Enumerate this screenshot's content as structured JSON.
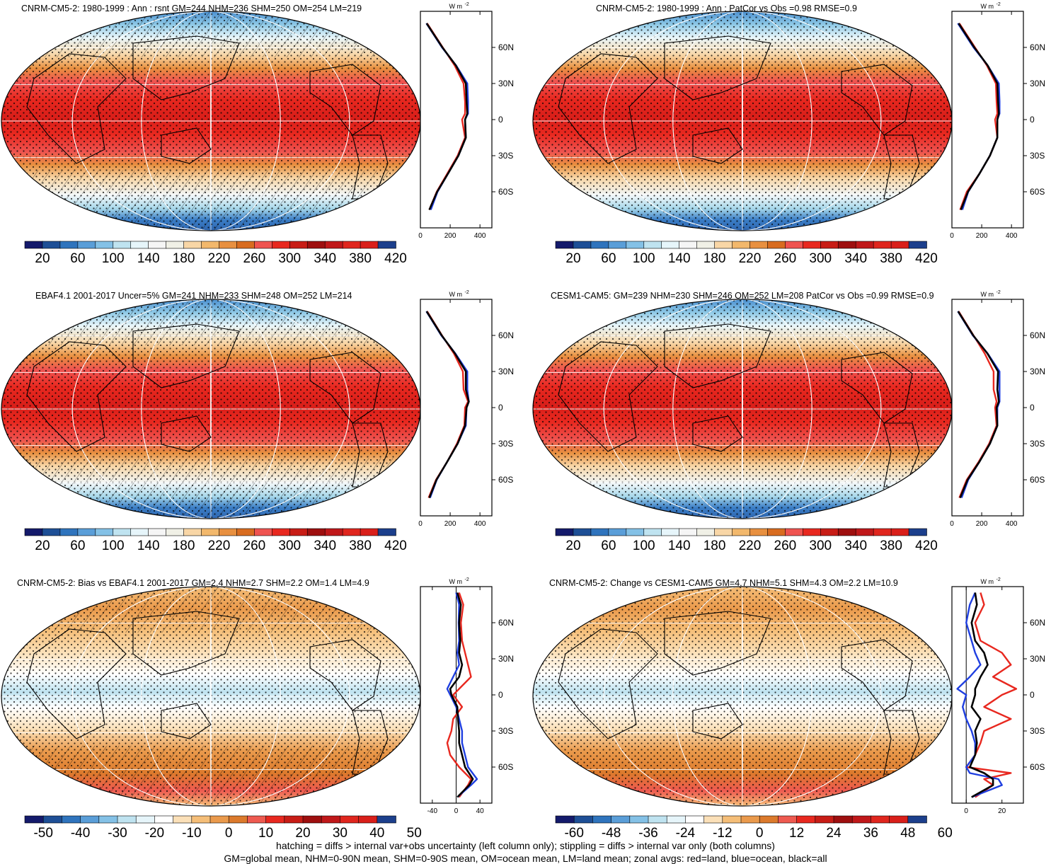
{
  "colors": {
    "seq_palette": [
      "#141a6b",
      "#1e4f96",
      "#2f74bd",
      "#5a9ed8",
      "#84c1e6",
      "#bfe3f0",
      "#e6f5fa",
      "#f5f5f5",
      "#f0f0e6",
      "#f8d6a6",
      "#f2b86c",
      "#e89040",
      "#d86c20",
      "#ef5350",
      "#e8281f",
      "#c81d16",
      "#9e0f0f",
      "#c0181a",
      "#e0261e",
      "#d91f1a",
      "#1c3f8c"
    ],
    "div_palette": [
      "#141a6b",
      "#1e4f96",
      "#2f74bd",
      "#5a9ed8",
      "#84c1e6",
      "#bfe3f0",
      "#e6f5fa",
      "#ffffff",
      "#fbe0b8",
      "#f5be78",
      "#ea9a4c",
      "#dc7a2c",
      "#ee5a50",
      "#e8281f",
      "#c81d16",
      "#9e0f0f",
      "#c0181a",
      "#e0261e",
      "#d91f1a",
      "#1c3f8c"
    ],
    "land_line": "#e8281f",
    "ocean_line": "#1f3fe0",
    "all_line": "#000000"
  },
  "footer": {
    "line1": "hatching = diffs > internal var+obs uncertainty (left column only); stippling = diffs > internal var only (both columns)",
    "line2": "GM=global mean, NHM=0-90N mean, SHM=0-90S mean, OM=ocean mean, LM=land mean; zonal avgs: red=land, blue=ocean, black=all"
  },
  "lat_labels": [
    "60N",
    "30N",
    "0",
    "30S",
    "60S"
  ],
  "unit_label": "W m",
  "unit_exp": "-2",
  "panels": [
    {
      "title": "CNRM-CM5-2: 1980-1999 : Ann : rsnt GM=244 NHM=236 SHM=250 OM=254 LM=219",
      "kind": "seq",
      "hatched": true,
      "colorbar_labels": [
        "20",
        "60",
        "100",
        "140",
        "180",
        "220",
        "260",
        "300",
        "340",
        "380",
        "420"
      ],
      "xticks": [
        "0",
        "200",
        "400"
      ]
    },
    {
      "title": "CNRM-CM5-2: 1980-1999 : Ann : PatCor vs Obs =0.98 RMSE=0.9",
      "kind": "seq",
      "hatched": false,
      "colorbar_labels": [
        "20",
        "60",
        "100",
        "140",
        "180",
        "220",
        "260",
        "300",
        "340",
        "380",
        "420"
      ],
      "xticks": [
        "0",
        "200",
        "400"
      ]
    },
    {
      "title": "EBAF4.1 2001-2017 Uncer=5% GM=241 NHM=233 SHM=248 OM=252 LM=214",
      "kind": "seq",
      "hatched": true,
      "colorbar_labels": [
        "20",
        "60",
        "100",
        "140",
        "180",
        "220",
        "260",
        "300",
        "340",
        "380",
        "420"
      ],
      "xticks": [
        "0",
        "200",
        "400"
      ]
    },
    {
      "title": "CESM1-CAM5: GM=239 NHM=230 SHM=246 OM=252 LM=208 PatCor vs Obs =0.99 RMSE=0.9",
      "kind": "seq",
      "hatched": false,
      "colorbar_labels": [
        "20",
        "60",
        "100",
        "140",
        "180",
        "220",
        "260",
        "300",
        "340",
        "380",
        "420"
      ],
      "xticks": [
        "0",
        "200",
        "400"
      ]
    },
    {
      "title": "CNRM-CM5-2: Bias vs EBAF4.1 2001-2017 GM=2.4 NHM=2.7 SHM=2.2 OM=1.4 LM=4.9",
      "kind": "div",
      "hatched": true,
      "colorbar_labels": [
        "-50",
        "-40",
        "-30",
        "-20",
        "-10",
        "0",
        "10",
        "20",
        "30",
        "40",
        "50"
      ],
      "xticks": [
        "-40",
        "0",
        "40"
      ]
    },
    {
      "title": "CNRM-CM5-2: Change vs CESM1-CAM5 GM=4.7 NHM=5.1 SHM=4.3 OM=2.2 LM=10.9",
      "kind": "div",
      "hatched": false,
      "colorbar_labels": [
        "-60",
        "-48",
        "-36",
        "-24",
        "-12",
        "0",
        "12",
        "24",
        "36",
        "48",
        "60"
      ],
      "xticks": [
        "0",
        "20"
      ]
    }
  ],
  "chart_data": [
    {
      "type": "line",
      "title": "CNRM-CM5-2: 1980-1999 : Ann : rsnt GM=244 NHM=236 SHM=250 OM=254 LM=219",
      "xlim": [
        0,
        480
      ],
      "ylim": [
        -90,
        90
      ],
      "y": [
        80,
        60,
        45,
        30,
        15,
        5,
        0,
        -15,
        -30,
        -45,
        -60,
        -75
      ],
      "series": [
        {
          "name": "land",
          "x": [
            45,
            150,
            230,
            290,
            300,
            300,
            280,
            300,
            250,
            180,
            110,
            60
          ]
        },
        {
          "name": "ocean",
          "x": [
            40,
            145,
            240,
            315,
            320,
            320,
            300,
            305,
            255,
            185,
            115,
            70
          ]
        },
        {
          "name": "all",
          "x": [
            42,
            148,
            238,
            305,
            310,
            315,
            300,
            305,
            255,
            185,
            112,
            60
          ]
        }
      ]
    },
    {
      "type": "line",
      "title": "CNRM-CM5-2: 1980-1999 : Ann : PatCor vs Obs =0.98 RMSE=0.9",
      "xlim": [
        0,
        480
      ],
      "ylim": [
        -90,
        90
      ],
      "y": [
        80,
        60,
        45,
        30,
        15,
        5,
        0,
        -15,
        -30,
        -45,
        -60,
        -75
      ],
      "series": [
        {
          "name": "land",
          "x": [
            50,
            155,
            235,
            295,
            300,
            305,
            290,
            305,
            255,
            185,
            100,
            55
          ]
        },
        {
          "name": "ocean",
          "x": [
            40,
            145,
            240,
            315,
            320,
            320,
            305,
            305,
            255,
            185,
            110,
            70
          ]
        },
        {
          "name": "all",
          "x": [
            45,
            150,
            240,
            305,
            310,
            315,
            305,
            305,
            255,
            185,
            108,
            60
          ]
        }
      ]
    },
    {
      "type": "line",
      "title": "EBAF4.1 2001-2017 Uncer=5% GM=241 NHM=233 SHM=248 OM=252 LM=214",
      "xlim": [
        0,
        480
      ],
      "ylim": [
        -90,
        90
      ],
      "y": [
        80,
        60,
        45,
        30,
        15,
        5,
        0,
        -15,
        -30,
        -45,
        -60,
        -75
      ],
      "series": [
        {
          "name": "land",
          "x": [
            45,
            145,
            225,
            285,
            290,
            320,
            300,
            295,
            245,
            180,
            105,
            55
          ]
        },
        {
          "name": "ocean",
          "x": [
            40,
            140,
            235,
            315,
            315,
            325,
            310,
            305,
            250,
            180,
            110,
            65
          ]
        },
        {
          "name": "all",
          "x": [
            42,
            143,
            232,
            305,
            305,
            325,
            310,
            300,
            250,
            180,
            108,
            60
          ]
        }
      ]
    },
    {
      "type": "line",
      "title": "CESM1-CAM5: GM=239 NHM=230 SHM=246 OM=252 LM=208 PatCor vs Obs =0.99 RMSE=0.9",
      "xlim": [
        0,
        480
      ],
      "ylim": [
        -90,
        90
      ],
      "y": [
        80,
        60,
        45,
        30,
        15,
        5,
        0,
        -15,
        -30,
        -45,
        -60,
        -75
      ],
      "series": [
        {
          "name": "land",
          "x": [
            45,
            145,
            220,
            280,
            280,
            300,
            290,
            300,
            250,
            180,
            100,
            50
          ]
        },
        {
          "name": "ocean",
          "x": [
            40,
            140,
            240,
            320,
            320,
            320,
            305,
            305,
            255,
            185,
            110,
            65
          ]
        },
        {
          "name": "all",
          "x": [
            42,
            143,
            238,
            310,
            305,
            315,
            300,
            305,
            255,
            185,
            105,
            55
          ]
        }
      ]
    },
    {
      "type": "line",
      "title": "CNRM-CM5-2: Bias vs EBAF4.1 2001-2017 GM=2.4 NHM=2.7 SHM=2.2 OM=1.4 LM=4.9",
      "xlim": [
        -60,
        60
      ],
      "ylim": [
        -90,
        90
      ],
      "y": [
        85,
        75,
        60,
        45,
        35,
        25,
        15,
        5,
        0,
        -10,
        -20,
        -30,
        -40,
        -50,
        -60,
        -70,
        -75,
        -85
      ],
      "series": [
        {
          "name": "land",
          "x": [
            5,
            12,
            8,
            10,
            15,
            20,
            25,
            5,
            -5,
            10,
            -5,
            -8,
            -15,
            -10,
            5,
            25,
            20,
            5
          ]
        },
        {
          "name": "ocean",
          "x": [
            0,
            5,
            4,
            5,
            2,
            5,
            -5,
            -15,
            -10,
            0,
            5,
            10,
            10,
            15,
            20,
            35,
            25,
            2
          ]
        },
        {
          "name": "all",
          "x": [
            2,
            8,
            5,
            7,
            5,
            10,
            5,
            -10,
            -8,
            2,
            3,
            5,
            5,
            10,
            15,
            28,
            22,
            2
          ]
        }
      ]
    },
    {
      "type": "line",
      "title": "CNRM-CM5-2: Change vs CESM1-CAM5 GM=4.7 NHM=5.1 SHM=4.3 OM=2.2 LM=10.9",
      "xlim": [
        -8,
        32
      ],
      "ylim": [
        -90,
        90
      ],
      "y": [
        85,
        75,
        60,
        45,
        35,
        25,
        15,
        5,
        0,
        -10,
        -20,
        -30,
        -40,
        -50,
        -60,
        -65,
        -70,
        -75,
        -85
      ],
      "series": [
        {
          "name": "land",
          "x": [
            8,
            10,
            5,
            8,
            20,
            25,
            15,
            28,
            20,
            10,
            25,
            10,
            8,
            5,
            0,
            25,
            10,
            15,
            5
          ]
        },
        {
          "name": "ocean",
          "x": [
            5,
            2,
            0,
            3,
            5,
            8,
            2,
            -5,
            0,
            -2,
            0,
            3,
            5,
            5,
            0,
            2,
            18,
            20,
            3
          ]
        },
        {
          "name": "all",
          "x": [
            5,
            6,
            3,
            5,
            10,
            12,
            8,
            5,
            5,
            3,
            8,
            5,
            6,
            5,
            2,
            10,
            15,
            15,
            3
          ]
        }
      ]
    }
  ]
}
